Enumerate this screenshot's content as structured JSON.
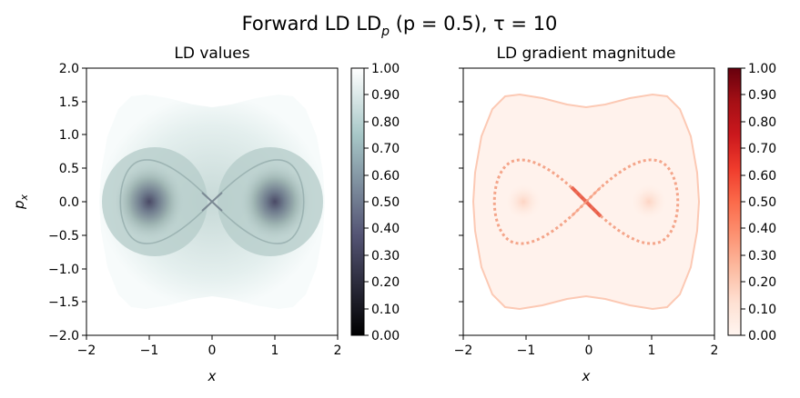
{
  "figure": {
    "title_main": "Forward LD LD",
    "title_sub": "p",
    "title_rest": " (p = 0.5), τ = 10"
  },
  "chart_data": [
    {
      "type": "heatmap",
      "title": "LD values",
      "xlabel": "x",
      "ylabel": "p_x",
      "xlim": [
        -2,
        2
      ],
      "ylim": [
        -2,
        2
      ],
      "xticks": [
        "−2",
        "−1",
        "0",
        "1",
        "2"
      ],
      "yticks": [
        "−2.0",
        "−1.5",
        "−1.0",
        "−0.5",
        "0.0",
        "0.5",
        "1.0",
        "1.5",
        "2.0"
      ],
      "colormap": "bone",
      "colorbar": {
        "range": [
          0,
          1
        ],
        "ticks": [
          "0.00",
          "0.10",
          "0.20",
          "0.30",
          "0.40",
          "0.50",
          "0.60",
          "0.70",
          "0.80",
          "0.90",
          "1.00"
        ]
      },
      "description_values": {
        "potential_wells": [
          [
            -1,
            0
          ],
          [
            1,
            0
          ]
        ],
        "min_value_at_wells": 0.45,
        "saddle": [
          0,
          0
        ],
        "background_value": 0.97
      }
    },
    {
      "type": "heatmap",
      "title": "LD gradient magnitude",
      "xlabel": "x",
      "ylabel": "",
      "xlim": [
        -2,
        2
      ],
      "ylim": [
        -2,
        2
      ],
      "xticks": [
        "−2",
        "−1",
        "0",
        "1",
        "2"
      ],
      "yticks": [],
      "colormap": "Reds",
      "colorbar": {
        "range": [
          0,
          1
        ],
        "ticks": [
          "0.00",
          "0.10",
          "0.20",
          "0.30",
          "0.40",
          "0.50",
          "0.60",
          "0.70",
          "0.80",
          "0.90",
          "1.00"
        ]
      },
      "description_values": {
        "separatrix_peak": 0.5,
        "background_value": 0.05
      }
    }
  ]
}
